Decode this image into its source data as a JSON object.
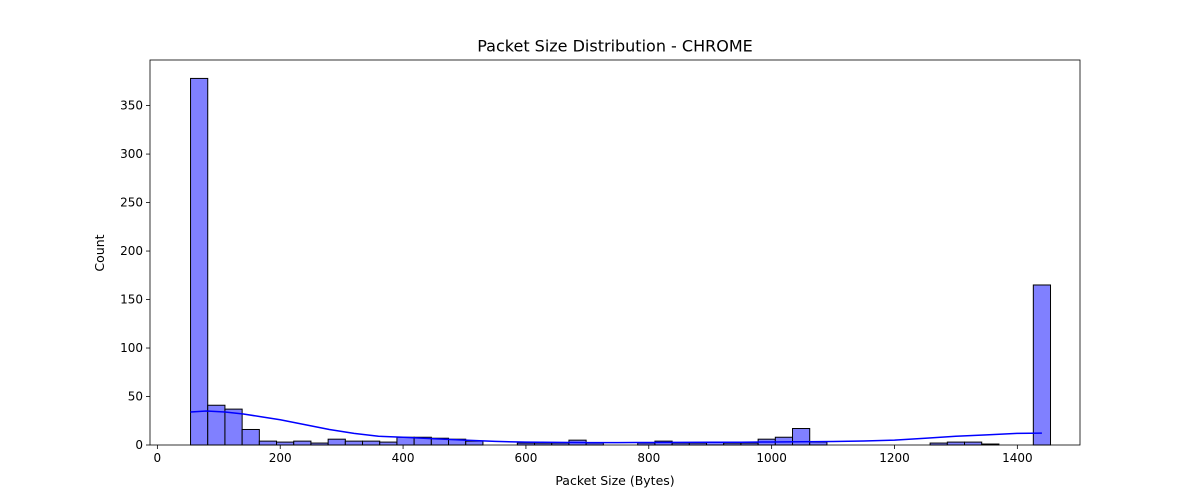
{
  "chart_data": {
    "type": "bar",
    "title": "Packet Size Distribution - CHROME",
    "xlabel": "Packet Size (Bytes)",
    "ylabel": "Count",
    "xlim": [
      -12,
      1502
    ],
    "ylim": [
      0,
      397
    ],
    "xticks": [
      0,
      200,
      400,
      600,
      800,
      1000,
      1200,
      1400
    ],
    "yticks": [
      0,
      50,
      100,
      150,
      200,
      250,
      300,
      350
    ],
    "grid": false,
    "legend": "none",
    "bar_color": "#8080ff",
    "bar_edge_color": "#000000",
    "kde_color": "#0000ff",
    "bins": [
      {
        "start": 54,
        "end": 82,
        "count": 378
      },
      {
        "start": 82,
        "end": 110,
        "count": 41
      },
      {
        "start": 110,
        "end": 138,
        "count": 37
      },
      {
        "start": 138,
        "end": 166,
        "count": 16
      },
      {
        "start": 166,
        "end": 194,
        "count": 4
      },
      {
        "start": 194,
        "end": 222,
        "count": 3
      },
      {
        "start": 222,
        "end": 250,
        "count": 4
      },
      {
        "start": 250,
        "end": 278,
        "count": 2
      },
      {
        "start": 278,
        "end": 306,
        "count": 6
      },
      {
        "start": 306,
        "end": 334,
        "count": 4
      },
      {
        "start": 334,
        "end": 362,
        "count": 4
      },
      {
        "start": 362,
        "end": 390,
        "count": 3
      },
      {
        "start": 390,
        "end": 418,
        "count": 8
      },
      {
        "start": 418,
        "end": 446,
        "count": 8
      },
      {
        "start": 446,
        "end": 474,
        "count": 7
      },
      {
        "start": 474,
        "end": 502,
        "count": 6
      },
      {
        "start": 502,
        "end": 530,
        "count": 4
      },
      {
        "start": 586,
        "end": 614,
        "count": 2
      },
      {
        "start": 614,
        "end": 642,
        "count": 2
      },
      {
        "start": 642,
        "end": 670,
        "count": 2
      },
      {
        "start": 670,
        "end": 698,
        "count": 5
      },
      {
        "start": 698,
        "end": 726,
        "count": 2
      },
      {
        "start": 782,
        "end": 810,
        "count": 2
      },
      {
        "start": 810,
        "end": 838,
        "count": 4
      },
      {
        "start": 838,
        "end": 866,
        "count": 2
      },
      {
        "start": 866,
        "end": 894,
        "count": 2
      },
      {
        "start": 894,
        "end": 922,
        "count": 3
      },
      {
        "start": 922,
        "end": 950,
        "count": 2
      },
      {
        "start": 950,
        "end": 978,
        "count": 2
      },
      {
        "start": 978,
        "end": 1006,
        "count": 6
      },
      {
        "start": 1006,
        "end": 1034,
        "count": 8
      },
      {
        "start": 1034,
        "end": 1062,
        "count": 17
      },
      {
        "start": 1062,
        "end": 1090,
        "count": 3
      },
      {
        "start": 1258,
        "end": 1286,
        "count": 2
      },
      {
        "start": 1286,
        "end": 1314,
        "count": 3
      },
      {
        "start": 1314,
        "end": 1342,
        "count": 3
      },
      {
        "start": 1342,
        "end": 1370,
        "count": 1
      },
      {
        "start": 1426,
        "end": 1454,
        "count": 165
      }
    ],
    "kde": {
      "x": [
        54,
        80,
        110,
        140,
        170,
        200,
        240,
        280,
        320,
        360,
        400,
        450,
        500,
        550,
        600,
        650,
        700,
        750,
        800,
        850,
        900,
        950,
        1000,
        1050,
        1100,
        1150,
        1200,
        1250,
        1300,
        1350,
        1400,
        1440
      ],
      "y": [
        34,
        35,
        34,
        32,
        29,
        26,
        21,
        16,
        12,
        9,
        8,
        6.5,
        5,
        3.7,
        3,
        2.7,
        2.5,
        2.5,
        2.6,
        2.7,
        2.8,
        2.9,
        3.1,
        3.3,
        3.6,
        4.1,
        5,
        7,
        9,
        10.5,
        12,
        12.3
      ]
    }
  }
}
